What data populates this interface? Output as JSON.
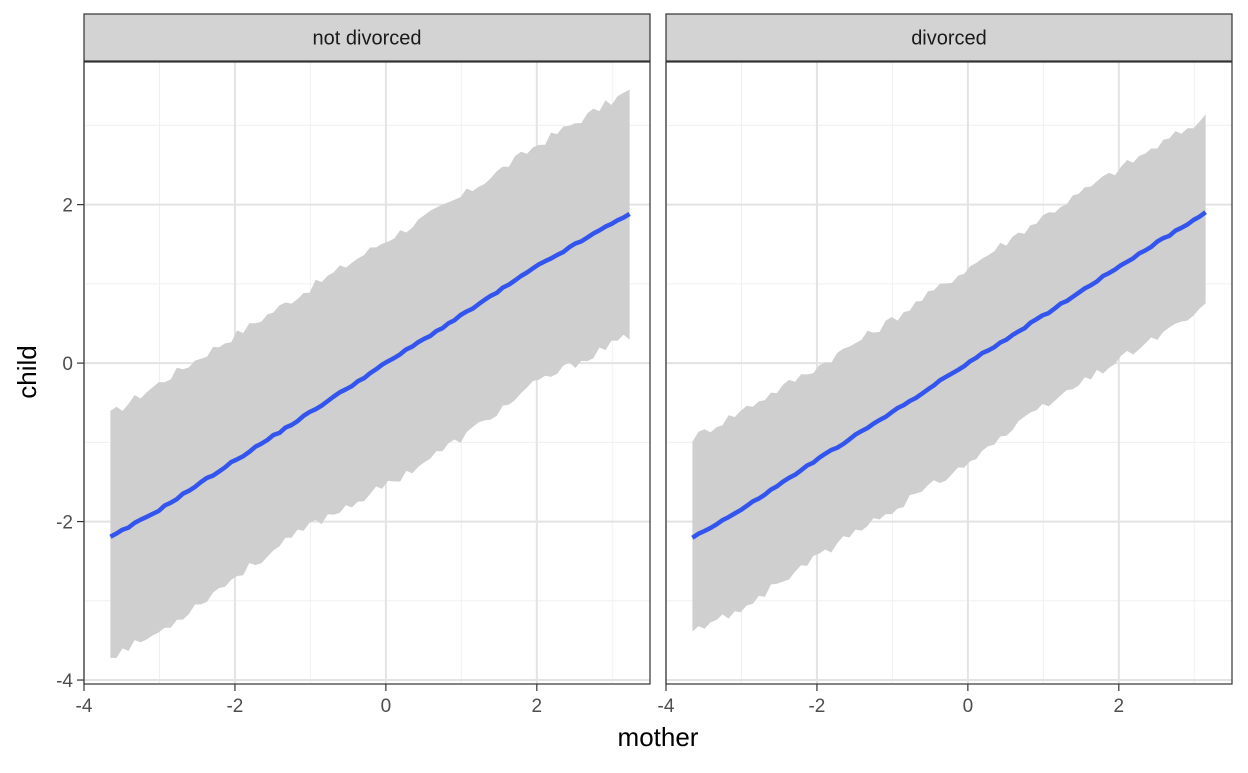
{
  "chart_data": {
    "type": "line",
    "facet_labels": [
      "not divorced",
      "divorced"
    ],
    "xlabel": "mother",
    "ylabel": "child",
    "xlim": [
      -4,
      3.5
    ],
    "ylim": [
      -4.05,
      3.8
    ],
    "x_ticks": [
      -4,
      -2,
      0,
      2
    ],
    "y_ticks": [
      -4,
      -2,
      0,
      2
    ],
    "grid": true,
    "colors": {
      "line": "#3355ee",
      "ribbon": "#cfcfcf",
      "strip": "#d3d3d3",
      "grid_major": "#e3e3e3",
      "grid_minor": "#f0f0f0",
      "border": "#333333"
    },
    "panels": [
      {
        "facet": "not divorced",
        "fit": {
          "x": [
            -3.65,
            -3.0,
            -2.0,
            -1.0,
            0.0,
            1.0,
            2.0,
            3.25
          ],
          "y": [
            -2.2,
            -1.85,
            -1.23,
            -0.62,
            0.0,
            0.6,
            1.22,
            1.9
          ]
        },
        "upper": {
          "x": [
            -3.65,
            -3.0,
            -2.0,
            -1.0,
            0.0,
            1.0,
            2.0,
            3.25
          ],
          "y": [
            -0.65,
            -0.25,
            0.35,
            0.95,
            1.55,
            2.1,
            2.75,
            3.45
          ]
        },
        "lower": {
          "x": [
            -3.65,
            -3.0,
            -2.0,
            -1.0,
            0.0,
            1.0,
            2.0,
            3.25
          ],
          "y": [
            -3.7,
            -3.4,
            -2.7,
            -2.05,
            -1.55,
            -0.95,
            -0.25,
            0.35
          ]
        }
      },
      {
        "facet": "divorced",
        "fit": {
          "x": [
            -3.65,
            -3.0,
            -2.0,
            -1.0,
            0.0,
            1.0,
            2.0,
            3.15
          ],
          "y": [
            -2.2,
            -1.85,
            -1.22,
            -0.62,
            0.0,
            0.6,
            1.22,
            1.9
          ]
        },
        "upper": {
          "x": [
            -3.65,
            -3.0,
            -2.0,
            -1.0,
            0.0,
            1.0,
            2.0,
            3.15
          ],
          "y": [
            -0.95,
            -0.6,
            -0.05,
            0.55,
            1.2,
            1.85,
            2.45,
            3.1
          ]
        },
        "lower": {
          "x": [
            -3.65,
            -3.0,
            -2.0,
            -1.0,
            0.0,
            1.0,
            2.0,
            3.15
          ],
          "y": [
            -3.4,
            -3.1,
            -2.45,
            -1.85,
            -1.25,
            -0.55,
            0.05,
            0.7
          ]
        }
      }
    ]
  }
}
